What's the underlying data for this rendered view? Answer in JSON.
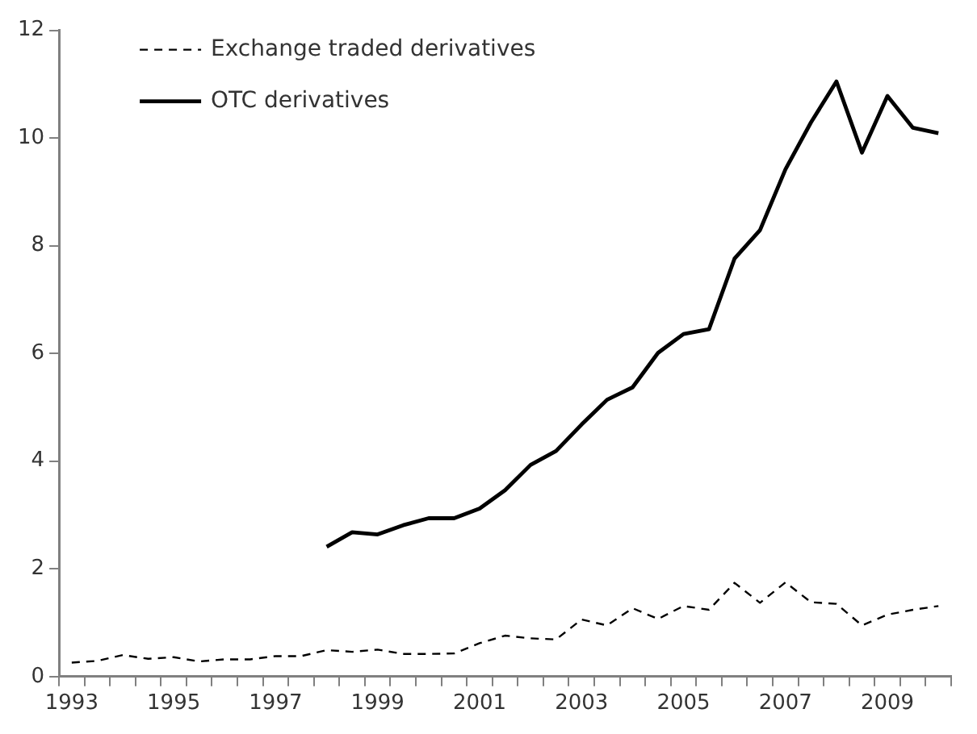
{
  "chart_data": {
    "type": "line",
    "categories": [
      "1993",
      null,
      null,
      null,
      "1995",
      null,
      null,
      null,
      "1997",
      null,
      null,
      null,
      "1999",
      null,
      null,
      null,
      "2001",
      null,
      null,
      null,
      "2003",
      null,
      null,
      null,
      "2005",
      null,
      null,
      null,
      "2007",
      null,
      null,
      null,
      "2009",
      null,
      null
    ],
    "series": [
      {
        "name": "Exchange traded derivatives",
        "color": "#000000",
        "line_style": "dashed",
        "values": [
          0.26,
          0.29,
          0.4,
          0.33,
          0.36,
          0.28,
          0.32,
          0.32,
          0.38,
          0.38,
          0.49,
          0.46,
          0.5,
          0.42,
          0.42,
          0.43,
          0.62,
          0.76,
          0.71,
          0.69,
          1.06,
          0.95,
          1.27,
          1.07,
          1.31,
          1.24,
          1.74,
          1.37,
          1.75,
          1.38,
          1.35,
          0.95,
          1.15,
          1.24,
          1.31
        ]
      },
      {
        "name": "OTC derivatives",
        "color": "#000000",
        "line_style": "solid",
        "values": [
          null,
          null,
          null,
          null,
          null,
          null,
          null,
          null,
          null,
          null,
          2.41,
          2.68,
          2.64,
          2.81,
          2.94,
          2.94,
          3.12,
          3.46,
          3.93,
          4.19,
          4.68,
          5.14,
          5.37,
          6.01,
          6.36,
          6.45,
          7.76,
          8.29,
          9.42,
          10.29,
          11.05,
          9.73,
          10.78,
          10.19,
          10.09
        ]
      }
    ],
    "ylim": [
      0,
      12
    ],
    "yticks": [
      0,
      2,
      4,
      6,
      8,
      10,
      12
    ],
    "grid": false,
    "legend": "top left",
    "marker": "none"
  }
}
